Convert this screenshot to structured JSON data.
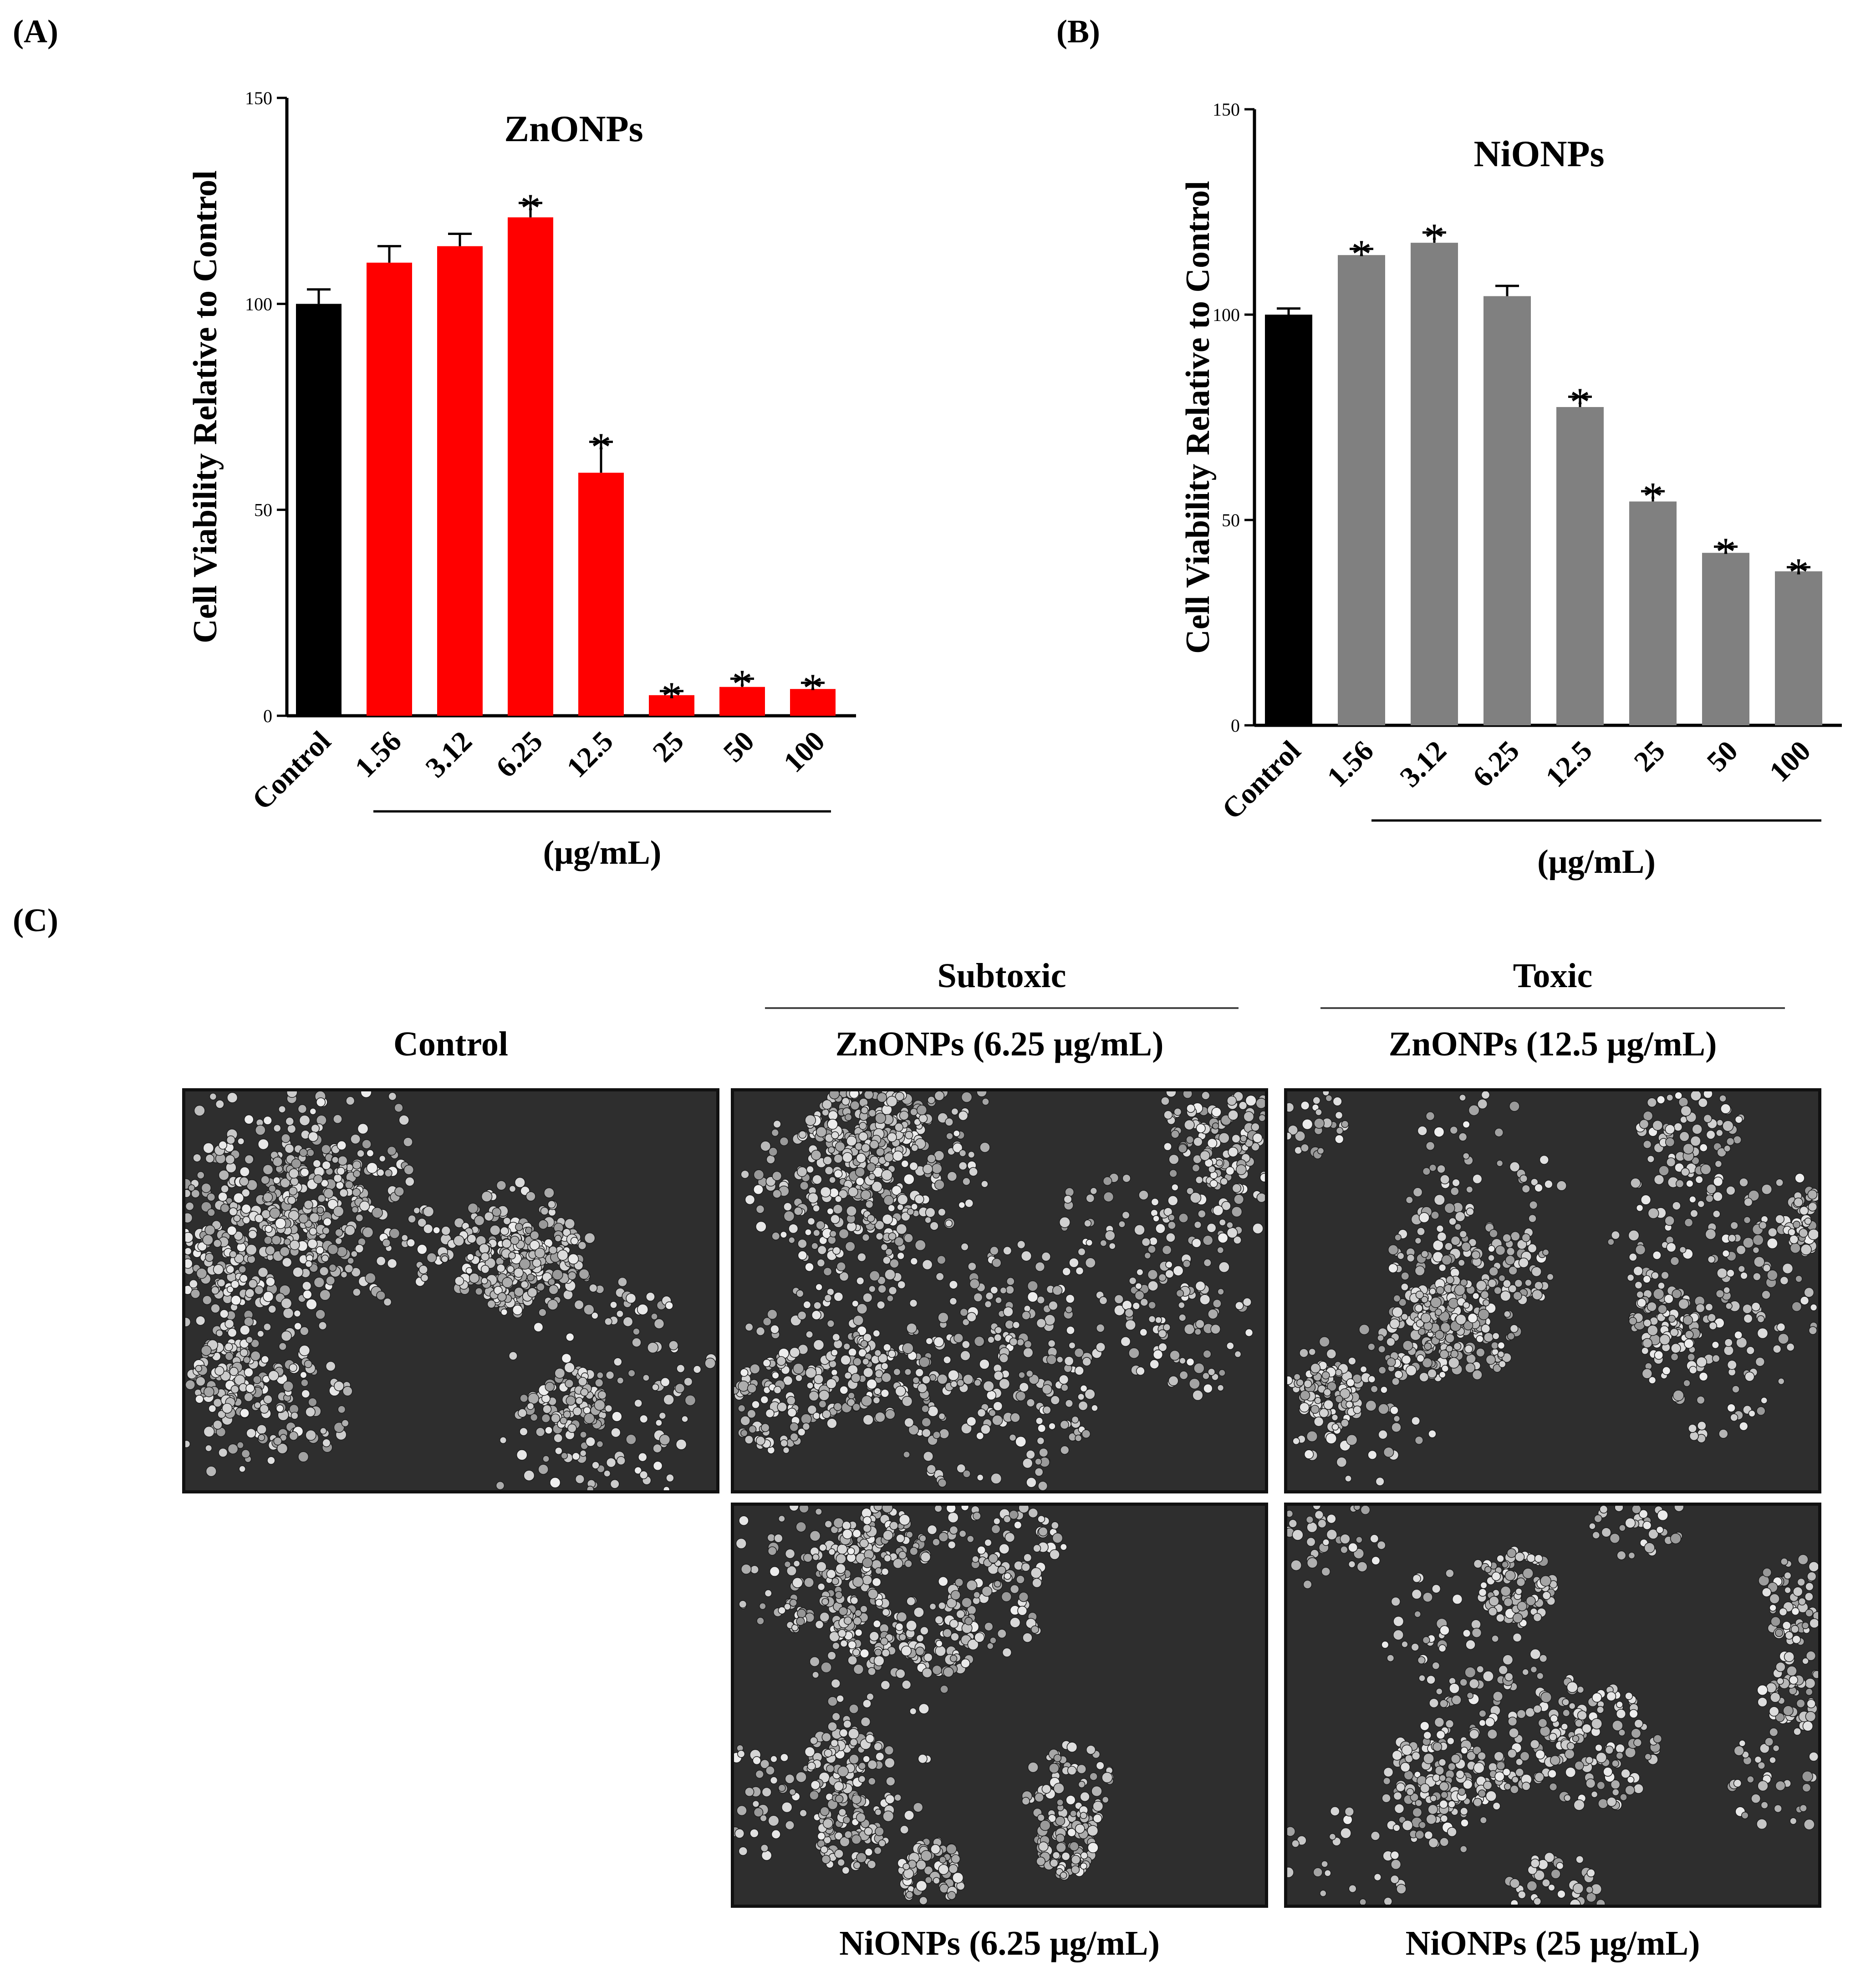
{
  "panel_labels": {
    "a": "(A)",
    "b": "(B)",
    "c": "(C)"
  },
  "chart_data": [
    {
      "type": "bar",
      "title": "ZnONPs",
      "ylabel": "Cell Viability Relative to Control",
      "xlabel": "(μg/mL)",
      "ylim": [
        0,
        150
      ],
      "yticks": [
        "0",
        "50",
        "100",
        "150"
      ],
      "categories": [
        "Control",
        "1.56",
        "3.12",
        "6.25",
        "12.5",
        "25",
        "50",
        "100"
      ],
      "values": [
        100,
        110,
        114,
        121,
        59,
        5,
        7,
        6.5
      ],
      "errors": [
        3.5,
        4,
        3,
        3.5,
        7.5,
        1,
        2,
        1.5
      ],
      "significant": [
        "",
        "",
        "",
        "*",
        "*",
        "*",
        "*",
        "*"
      ],
      "colors": [
        "#000000",
        "#ff0000",
        "#ff0000",
        "#ff0000",
        "#ff0000",
        "#ff0000",
        "#ff0000",
        "#ff0000"
      ]
    },
    {
      "type": "bar",
      "title": "NiONPs",
      "ylabel": "Cell Viability Relative to Control",
      "xlabel": "(μg/mL)",
      "ylim": [
        0,
        150
      ],
      "yticks": [
        "0",
        "50",
        "100",
        "150"
      ],
      "categories": [
        "Control",
        "1.56",
        "3.12",
        "6.25",
        "12.5",
        "25",
        "50",
        "100"
      ],
      "values": [
        100,
        114.5,
        117.5,
        104.5,
        77.5,
        54.5,
        42,
        37.5
      ],
      "errors": [
        1.5,
        1.5,
        2.5,
        2.5,
        2.5,
        2.5,
        1.5,
        1
      ],
      "significant": [
        "",
        "*",
        "*",
        "",
        "*",
        "*",
        "*",
        "*"
      ],
      "colors": [
        "#000000",
        "#808080",
        "#808080",
        "#808080",
        "#808080",
        "#808080",
        "#808080",
        "#808080"
      ]
    }
  ],
  "micrographs": {
    "group_subtoxic": "Subtoxic",
    "group_toxic": "Toxic",
    "control": "Control",
    "zn_subtoxic": "ZnONPs (6.25 μg/mL)",
    "zn_toxic": "ZnONPs (12.5 μg/mL)",
    "ni_subtoxic": "NiONPs (6.25 μg/mL)",
    "ni_toxic": "NiONPs (25 μg/mL)"
  }
}
